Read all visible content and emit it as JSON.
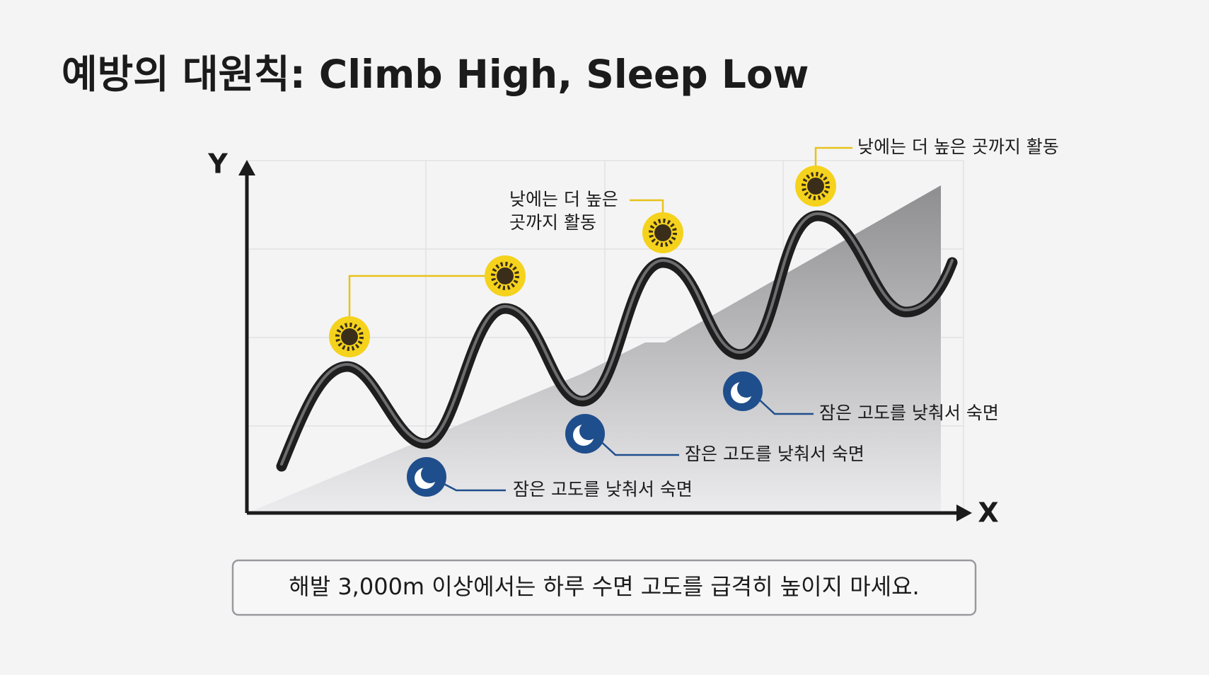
{
  "title": "예방의 대원칙: Climb High, Sleep Low",
  "axes": {
    "y_label": "Y",
    "x_label": "X"
  },
  "day_labels": [
    {
      "lines": [
        "낮에는 더 높은",
        "곳까지 활동"
      ]
    },
    {
      "lines": [
        "낮에는 더 높은 곳까지 활동"
      ]
    }
  ],
  "night_labels": [
    "잠은 고도를 낮춰서 숙면",
    "잠은 고도를 낮춰서 숙면",
    "잠은 고도를 낮춰서 숙면"
  ],
  "note": "해발 3,000m 이상에서는 하루 수면 고도를 급격히 높이지 마세요."
}
